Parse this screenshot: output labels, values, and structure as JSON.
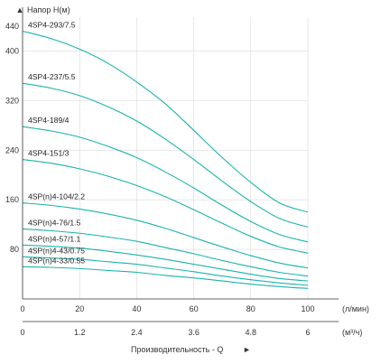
{
  "chart_data": {
    "type": "line",
    "ylabel": "Напор H(м)",
    "xlabel": "(л/мин)",
    "x2label": "(м³/ч)",
    "bottom_label": "Производительность - Q",
    "arrow_up": "▲",
    "arrow_right": "►",
    "xlim": [
      0,
      100
    ],
    "ylim": [
      0,
      440
    ],
    "x_ticks": [
      "0",
      "20",
      "40",
      "60",
      "80",
      "100"
    ],
    "x_tick_values": [
      0,
      20,
      40,
      60,
      80,
      100
    ],
    "x2_ticks": [
      "0",
      "1.2",
      "2.4",
      "3.6",
      "4.8",
      "6"
    ],
    "y_ticks": [
      "0",
      "80",
      "160",
      "240",
      "320",
      "400",
      "440"
    ],
    "y_tick_values": [
      0,
      80,
      160,
      240,
      320,
      400,
      440
    ],
    "series": [
      {
        "name": "4SP4-293/7.5",
        "x": [
          0,
          10,
          20,
          30,
          40,
          50,
          60,
          70,
          80,
          90,
          100
        ],
        "values": [
          432,
          420,
          403,
          380,
          350,
          315,
          272,
          228,
          188,
          155,
          140
        ]
      },
      {
        "name": "4SP4-237/5.5",
        "x": [
          0,
          10,
          20,
          30,
          40,
          50,
          60,
          70,
          80,
          90,
          100
        ],
        "values": [
          348,
          340,
          328,
          310,
          287,
          258,
          225,
          190,
          157,
          130,
          116
        ]
      },
      {
        "name": "4SP4-189/4",
        "x": [
          0,
          10,
          20,
          30,
          40,
          50,
          60,
          70,
          80,
          90,
          100
        ],
        "values": [
          278,
          271,
          261,
          246,
          228,
          205,
          179,
          151,
          125,
          104,
          92
        ]
      },
      {
        "name": "4SP4-151/3",
        "x": [
          0,
          10,
          20,
          30,
          40,
          50,
          60,
          70,
          80,
          90,
          100
        ],
        "values": [
          225,
          219,
          210,
          198,
          183,
          165,
          144,
          122,
          101,
          84,
          74
        ]
      },
      {
        "name": "4SP(n)4-104/2.2",
        "x": [
          0,
          10,
          20,
          30,
          40,
          50,
          60,
          70,
          80,
          90,
          100
        ],
        "values": [
          155,
          151,
          145,
          137,
          127,
          114,
          99,
          84,
          70,
          58,
          50
        ]
      },
      {
        "name": "4SP(n)4-76/1.5",
        "x": [
          0,
          10,
          20,
          30,
          40,
          50,
          60,
          70,
          80,
          90,
          100
        ],
        "values": [
          113,
          110,
          106,
          100,
          93,
          83,
          73,
          62,
          52,
          43,
          37
        ]
      },
      {
        "name": "4SP(n)4-57/1.1",
        "x": [
          0,
          10,
          20,
          30,
          40,
          50,
          60,
          70,
          80,
          90,
          100
        ],
        "values": [
          87,
          85,
          82,
          77,
          71,
          64,
          56,
          48,
          40,
          33,
          29
        ]
      },
      {
        "name": "4SP(n)4-43/0.75",
        "x": [
          0,
          10,
          20,
          30,
          40,
          50,
          60,
          70,
          80,
          90,
          100
        ],
        "values": [
          68,
          66,
          64,
          60,
          56,
          50,
          44,
          37,
          31,
          26,
          22
        ]
      },
      {
        "name": "4SP(n)4-33/0.55",
        "x": [
          0,
          10,
          20,
          30,
          40,
          50,
          60,
          70,
          80,
          90,
          100
        ],
        "values": [
          52,
          51,
          49,
          46,
          43,
          38,
          34,
          29,
          24,
          20,
          17
        ]
      }
    ],
    "grid": true,
    "line_color": "#1bb3ad"
  }
}
